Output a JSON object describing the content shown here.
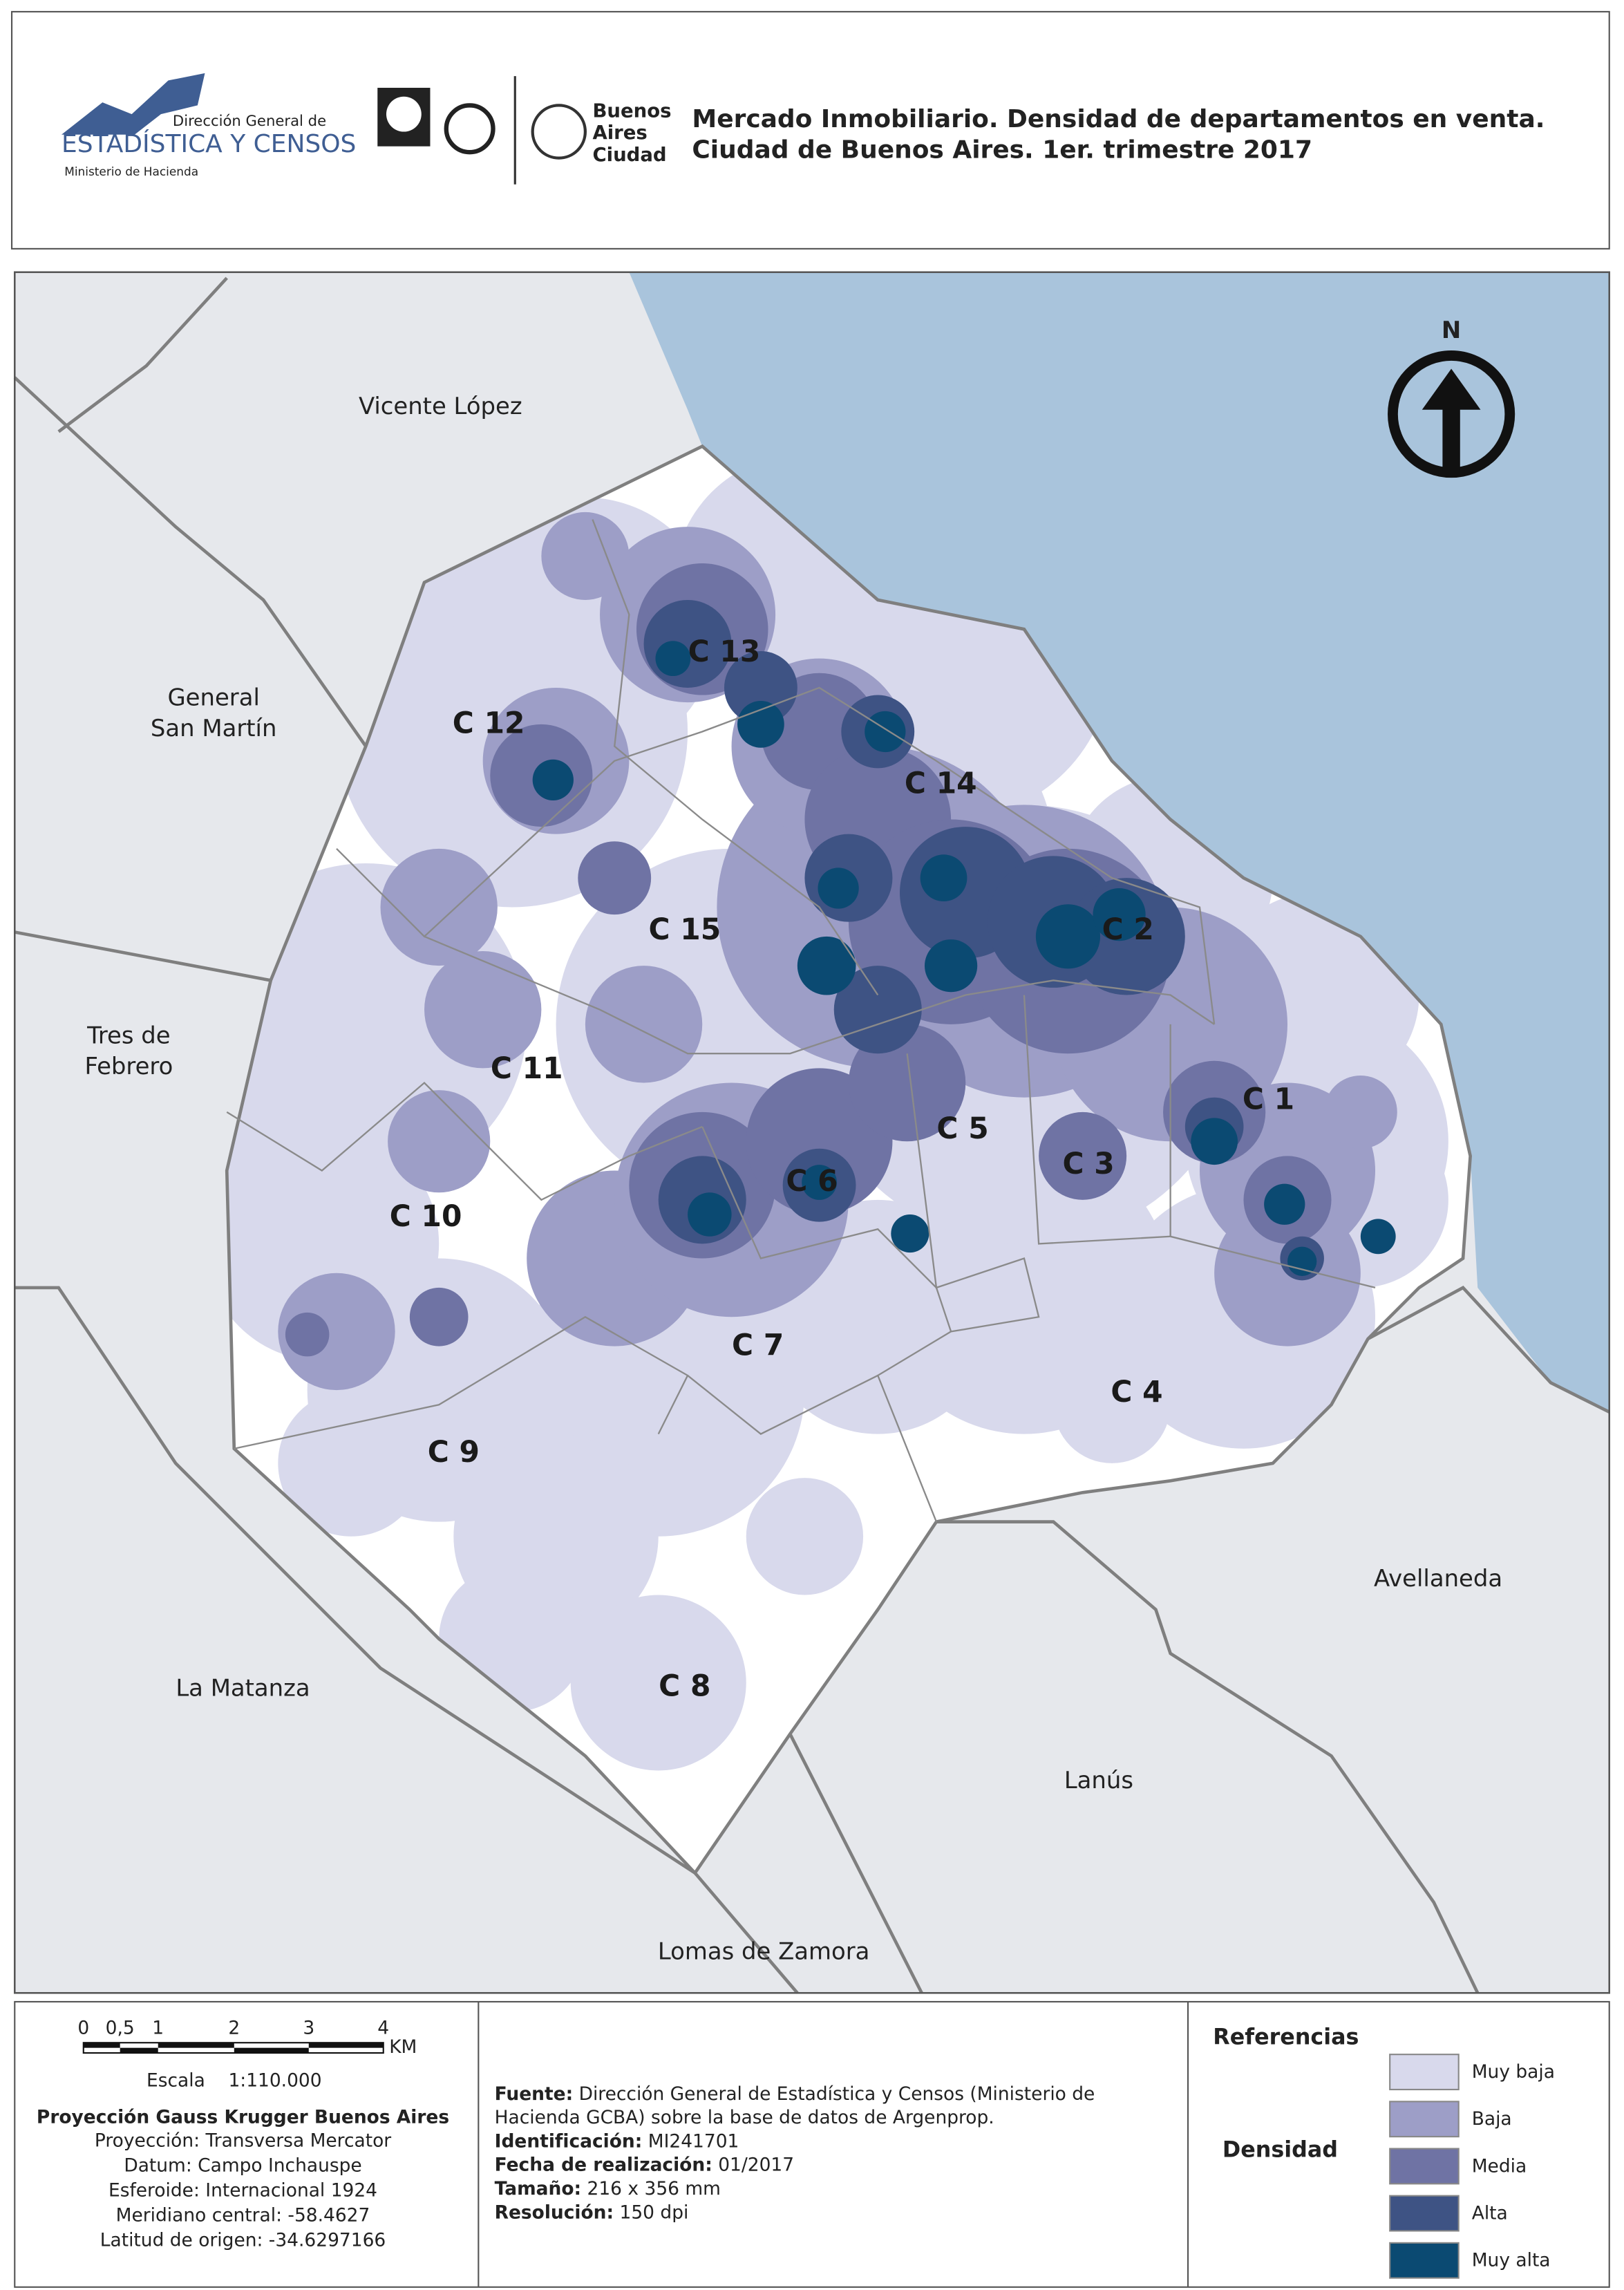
{
  "header": {
    "logo_agency": [
      "Dirección General de",
      "ESTADÍSTICA Y CENSOS",
      "Ministerio de Hacienda"
    ],
    "logo_city": [
      "Buenos",
      "Aires",
      "Ciudad"
    ],
    "title_lines": [
      "Mercado Inmobiliario. Densidad de departamentos en venta.",
      "Ciudad de Buenos Aires. 1er. trimestre 2017"
    ]
  },
  "map": {
    "north": "N",
    "municipalities": [
      {
        "lines": [
          "Vicente López"
        ]
      },
      {
        "lines": [
          "General",
          "San Martín"
        ]
      },
      {
        "lines": [
          "Tres de",
          "Febrero"
        ]
      },
      {
        "lines": [
          "La Matanza"
        ]
      },
      {
        "lines": [
          "Lomas de Zamora"
        ]
      },
      {
        "lines": [
          "Lanús"
        ]
      },
      {
        "lines": [
          "Avellaneda"
        ]
      }
    ],
    "comunas": [
      "C 13",
      "C 12",
      "C 14",
      "C 15",
      "C 2",
      "C 11",
      "C 1",
      "C 5",
      "C 3",
      "C 6",
      "C 10",
      "C 7",
      "C 4",
      "C 9",
      "C 8"
    ]
  },
  "footer": {
    "scale_labels": [
      "0",
      "0,5",
      "1",
      "2",
      "3",
      "4"
    ],
    "scale_unit": "KM",
    "scale_text": "Escala    1:110.000",
    "projection_title": "Proyección Gauss Krugger Buenos Aires",
    "projection_lines": [
      "Proyección: Transversa Mercator",
      "Datum: Campo Inchauspe",
      "Esferoide: Internacional 1924",
      "Meridiano central: -58.4627",
      "Latitud de origen: -34.6297166"
    ],
    "source": [
      {
        "label": "Fuente:",
        "text": "Dirección General de Estadística y Censos (Ministerio de"
      },
      {
        "label": "",
        "text": "Hacienda GCBA) sobre la base de datos de Argenprop."
      },
      {
        "label": "Identificación:",
        "text": "MI241701"
      },
      {
        "label": "Fecha de realización:",
        "text": "01/2017"
      },
      {
        "label": "Tamaño:",
        "text": "216 x 356 mm"
      },
      {
        "label": "Resolución:",
        "text": "150 dpi"
      }
    ],
    "legend_title": "Referencias",
    "legend_subtitle": "Densidad",
    "legend": [
      {
        "label": "Muy baja",
        "color": "#d8d9ec"
      },
      {
        "label": "Baja",
        "color": "#9d9ec7"
      },
      {
        "label": "Media",
        "color": "#6f73a4"
      },
      {
        "label": "Alta",
        "color": "#3e5384"
      },
      {
        "label": "Muy alta",
        "color": "#0b4a72"
      }
    ]
  }
}
